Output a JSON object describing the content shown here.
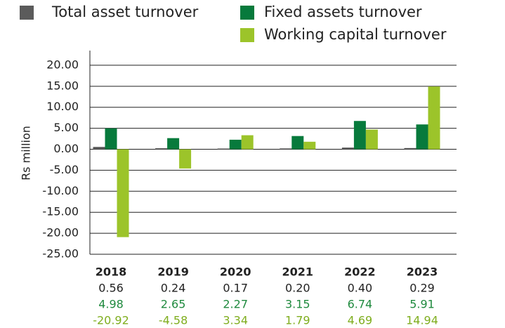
{
  "chart_data": {
    "type": "bar",
    "y_label": "Rs million",
    "categories": [
      "2018",
      "2019",
      "2020",
      "2021",
      "2022",
      "2023"
    ],
    "series": [
      {
        "name": "Total asset turnover",
        "color": "#5b5b5b",
        "text_color": "#222222",
        "values": [
          0.56,
          0.24,
          0.17,
          0.2,
          0.4,
          0.29
        ],
        "value_labels": [
          "0.56",
          "0.24",
          "0.17",
          "0.20",
          "0.40",
          "0.29"
        ]
      },
      {
        "name": "Fixed assets turnover",
        "color": "#077a3c",
        "text_color": "#1f8a3e",
        "values": [
          4.98,
          2.65,
          2.27,
          3.15,
          6.74,
          5.91
        ],
        "value_labels": [
          "4.98",
          "2.65",
          "2.27",
          "3.15",
          "6.74",
          "5.91"
        ]
      },
      {
        "name": "Working capital turnover",
        "color": "#9cc42a",
        "text_color": "#7fae1e",
        "values": [
          -20.92,
          -4.58,
          3.34,
          1.79,
          4.69,
          14.94
        ],
        "value_labels": [
          "-20.92",
          "-4.58",
          "3.34",
          "1.79",
          "4.69",
          "14.94"
        ]
      }
    ],
    "ylim": [
      -25,
      23.5
    ],
    "yticks": [
      {
        "value": 20,
        "label": "20.00"
      },
      {
        "value": 15,
        "label": "15.00"
      },
      {
        "value": 10,
        "label": "10.00"
      },
      {
        "value": 5,
        "label": "5.00"
      },
      {
        "value": 0,
        "label": "0.00"
      },
      {
        "value": -5,
        "label": "-5.00"
      },
      {
        "value": -10,
        "label": "-10.00"
      },
      {
        "value": -15,
        "label": "-15.00"
      },
      {
        "value": -20,
        "label": "-20.00"
      },
      {
        "value": -25,
        "label": "-25.00"
      }
    ],
    "grid": true
  }
}
